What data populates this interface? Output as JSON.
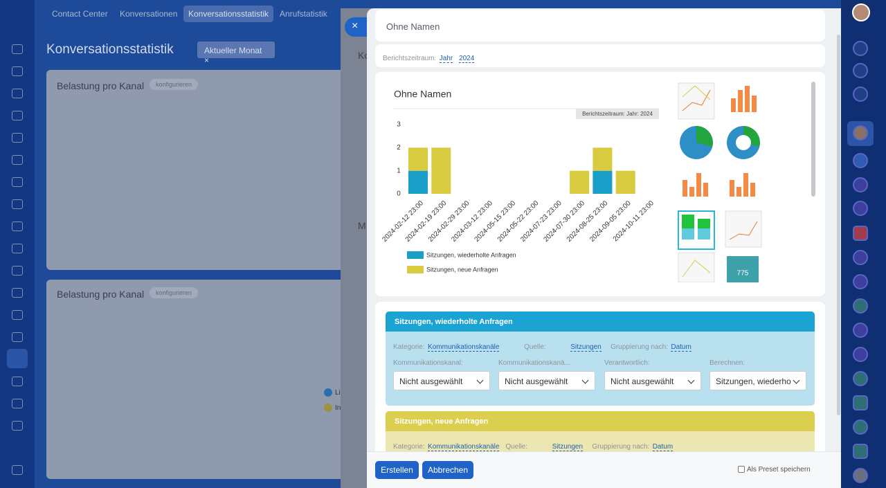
{
  "ui": {
    "nav": {
      "tabs": [
        "Contact Center",
        "Konversationen",
        "Konversationsstatistik",
        "Anrufstatistik"
      ]
    },
    "page": {
      "title": "Konversationsstatistik",
      "filter": "Aktueller Monat",
      "widgets": [
        {
          "title": "Belastung pro Kanal",
          "action": "konfigurieren"
        },
        {
          "title": "Belastung pro Kanal",
          "action": "konfigurieren"
        }
      ],
      "legend": [
        "Li",
        "In"
      ],
      "behind": [
        "Ko",
        "M"
      ]
    },
    "modal": {
      "name": "Ohne Namen",
      "period": {
        "label": "Berichtszeitraum:",
        "unit": "Jahr",
        "year": "2024"
      },
      "tile_value": "775",
      "panels": [
        {
          "title": "Sitzungen, wiederholte Anfragen",
          "kategorie": "Kategorie:",
          "kategorie_value": "Kommunikationskanäle",
          "quelle": "Quelle:",
          "quelle_value": "Sitzungen",
          "gruppierung": "Gruppierung nach:",
          "gruppierung_value": "Datum",
          "fields": [
            {
              "label": "Kommunikationskanal:",
              "value": "Nicht ausgewählt"
            },
            {
              "label": "Kommunikationskanä...",
              "value": "Nicht ausgewählt"
            },
            {
              "label": "Verantwortlich:",
              "value": "Nicht ausgewählt"
            },
            {
              "label": "Berechnen:",
              "value": "Sitzungen, wiederho"
            }
          ]
        },
        {
          "title": "Sitzungen, neue Anfragen",
          "kategorie": "Kategorie:",
          "kategorie_value": "Kommunikationskanäle",
          "quelle": "Quelle:",
          "quelle_value": "Sitzungen",
          "gruppierung": "Gruppierung nach:",
          "gruppierung_value": "Datum"
        }
      ],
      "footer": {
        "create": "Erstellen",
        "cancel": "Abbrechen",
        "preset": "Als Preset speichern"
      }
    }
  },
  "chart_data": {
    "type": "bar",
    "stacked": true,
    "title": "Ohne Namen",
    "badge": "Berichtszeitraum: Jahr: 2024",
    "categories": [
      "2024-02-12 23:00",
      "2024-02-19 23:00",
      "2024-02-29 23:00",
      "2024-03-12 23:00",
      "2024-05-15 23:00",
      "2024-05-22 23:00",
      "2024-07-23 23:00",
      "2024-07-30 23:00",
      "2024-08-25 23:00",
      "2024-09-05 23:00",
      "2024-10-11 23:00"
    ],
    "series": [
      {
        "name": "Sitzungen, wiederholte Anfragen",
        "color": "#1aa0c8",
        "values": [
          1,
          0,
          0,
          0,
          0,
          0,
          0,
          0,
          1,
          0,
          0
        ]
      },
      {
        "name": "Sitzungen, neue Anfragen",
        "color": "#d8cb3f",
        "values": [
          1,
          2,
          0,
          0,
          0,
          0,
          0,
          1,
          1,
          1,
          0
        ]
      }
    ],
    "ylim": [
      0,
      3
    ],
    "yticks": [
      0,
      1,
      2,
      3
    ],
    "grid": false,
    "legend": "bottom"
  }
}
